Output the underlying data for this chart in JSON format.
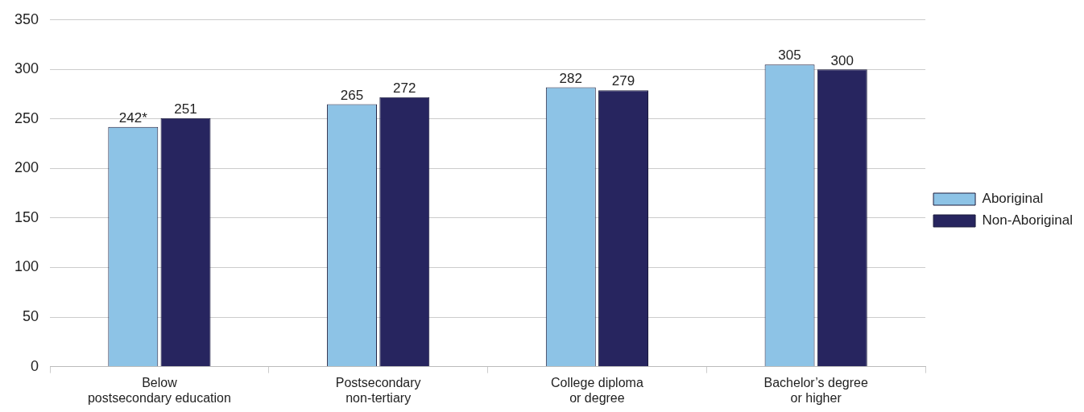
{
  "chart_data": {
    "type": "bar",
    "categories": [
      "Below\npostsecondary education",
      "Postsecondary\nnon-tertiary",
      "College diploma\nor degree",
      "Bachelor’s degree\nor higher"
    ],
    "series": [
      {
        "name": "Aboriginal",
        "color": "#8dc3e6",
        "values": [
          242,
          265,
          282,
          305
        ],
        "value_labels": [
          "242*",
          "265",
          "282",
          "305"
        ]
      },
      {
        "name": "Non-Aboriginal",
        "color": "#27255f",
        "values": [
          251,
          272,
          279,
          300
        ],
        "value_labels": [
          "251",
          "272",
          "279",
          "300"
        ]
      }
    ],
    "ylim": [
      0,
      350
    ],
    "yticks": [
      0,
      50,
      100,
      150,
      200,
      250,
      300,
      350
    ],
    "grid": "y",
    "legend": "right"
  }
}
